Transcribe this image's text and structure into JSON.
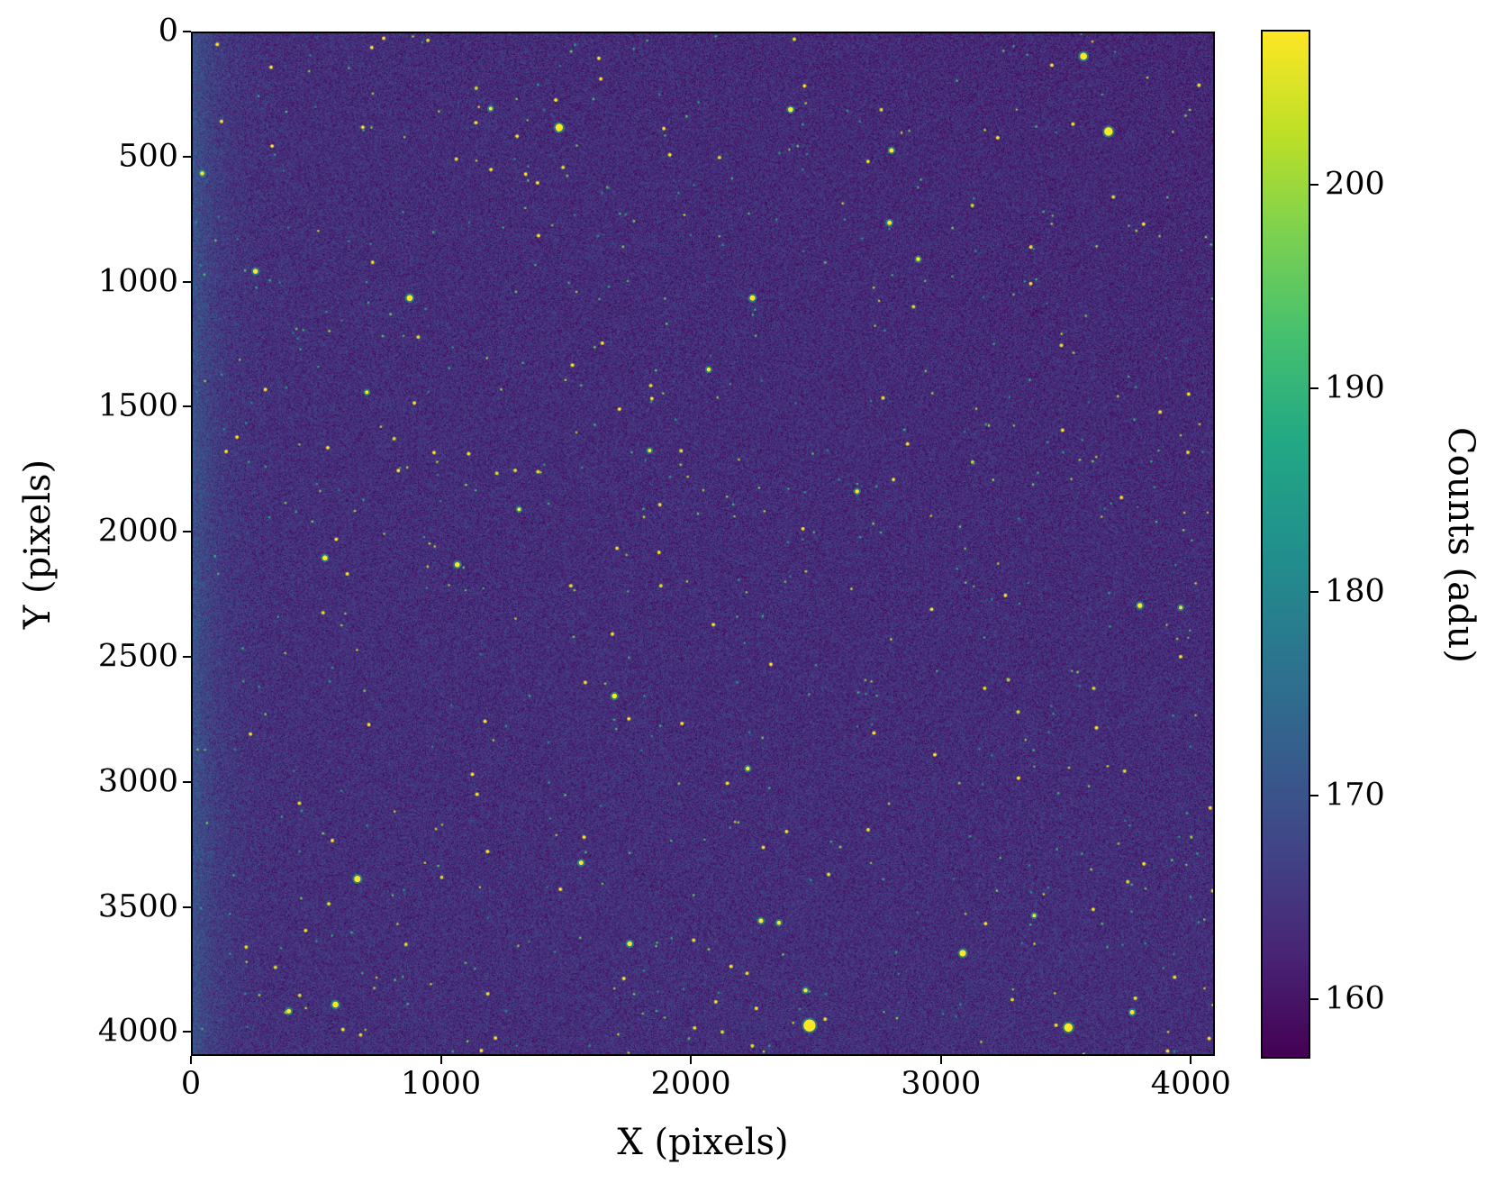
{
  "chart_data": {
    "type": "heatmap",
    "title": "",
    "xlabel": "X (pixels)",
    "ylabel": "Y (pixels)",
    "xlim": [
      0,
      4096
    ],
    "ylim": [
      4096,
      0
    ],
    "xticks": [
      0,
      1000,
      2000,
      3000,
      4000
    ],
    "yticks": [
      0,
      500,
      1000,
      1500,
      2000,
      2500,
      3000,
      3500,
      4000
    ],
    "colormap": "viridis",
    "colorbar": {
      "label": "Counts (adu)",
      "range": [
        157.1,
        207.6
      ],
      "ticks": [
        160,
        170,
        180,
        190,
        200
      ]
    },
    "background_level": 164,
    "background_noise": 3,
    "grid": false,
    "bright_sources": [
      {
        "x": 3576,
        "y": 92,
        "r": 14
      },
      {
        "x": 3676,
        "y": 394,
        "r": 17
      },
      {
        "x": 1471,
        "y": 378,
        "r": 15
      },
      {
        "x": 2400,
        "y": 306,
        "r": 10
      },
      {
        "x": 2805,
        "y": 470,
        "r": 9
      },
      {
        "x": 2797,
        "y": 760,
        "r": 9
      },
      {
        "x": 2912,
        "y": 906,
        "r": 8
      },
      {
        "x": 252,
        "y": 955,
        "r": 10
      },
      {
        "x": 871,
        "y": 1062,
        "r": 12
      },
      {
        "x": 2247,
        "y": 1062,
        "r": 11
      },
      {
        "x": 38,
        "y": 562,
        "r": 8
      },
      {
        "x": 1196,
        "y": 302,
        "r": 7
      },
      {
        "x": 2071,
        "y": 1349,
        "r": 8
      },
      {
        "x": 1834,
        "y": 1674,
        "r": 7
      },
      {
        "x": 531,
        "y": 2105,
        "r": 10
      },
      {
        "x": 1062,
        "y": 2132,
        "r": 10
      },
      {
        "x": 3802,
        "y": 2296,
        "r": 10
      },
      {
        "x": 3966,
        "y": 2304,
        "r": 7
      },
      {
        "x": 1693,
        "y": 2659,
        "r": 10
      },
      {
        "x": 2228,
        "y": 2950,
        "r": 8
      },
      {
        "x": 2667,
        "y": 1838,
        "r": 8
      },
      {
        "x": 1310,
        "y": 1910,
        "r": 7
      },
      {
        "x": 699,
        "y": 1440,
        "r": 7
      },
      {
        "x": 661,
        "y": 3393,
        "r": 13
      },
      {
        "x": 1559,
        "y": 3328,
        "r": 9
      },
      {
        "x": 2281,
        "y": 3561,
        "r": 9
      },
      {
        "x": 2353,
        "y": 3569,
        "r": 8
      },
      {
        "x": 1754,
        "y": 3653,
        "r": 10
      },
      {
        "x": 3091,
        "y": 3691,
        "r": 13
      },
      {
        "x": 573,
        "y": 3897,
        "r": 12
      },
      {
        "x": 386,
        "y": 3924,
        "r": 9
      },
      {
        "x": 2476,
        "y": 3981,
        "r": 24
      },
      {
        "x": 3515,
        "y": 3989,
        "r": 17
      },
      {
        "x": 3771,
        "y": 3928,
        "r": 9
      },
      {
        "x": 2460,
        "y": 3840,
        "r": 8
      },
      {
        "x": 3378,
        "y": 3540,
        "r": 7
      }
    ]
  }
}
